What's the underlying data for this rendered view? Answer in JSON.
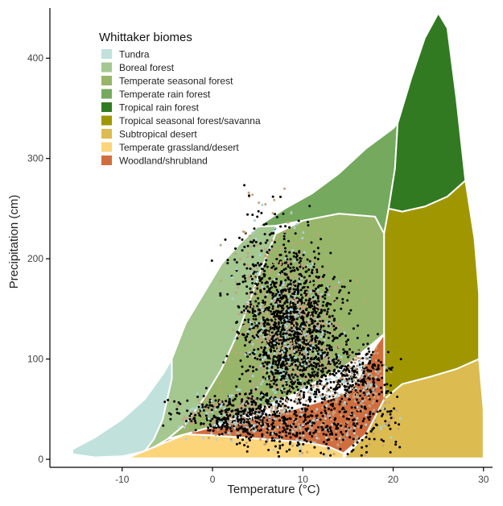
{
  "chart_data": {
    "type": "area",
    "title": "",
    "xlabel": "Temperature (°C)",
    "ylabel": "Precipitation (cm)",
    "xlim": [
      -18,
      31
    ],
    "ylim": [
      -8,
      450
    ],
    "x_ticks": [
      -10,
      0,
      10,
      20,
      30
    ],
    "y_ticks": [
      0,
      100,
      200,
      300,
      400
    ],
    "x_tick_labels": [
      "-10",
      "0",
      "10",
      "20",
      "30"
    ],
    "y_tick_labels": [
      "0",
      "100",
      "200",
      "300",
      "400"
    ],
    "grid": false,
    "legend": {
      "title": "Whittaker biomes",
      "position": "top-left",
      "entries": [
        {
          "name": "Tundra",
          "color": "#C1E1DD"
        },
        {
          "name": "Boreal forest",
          "color": "#A5C790"
        },
        {
          "name": "Temperate seasonal forest",
          "color": "#97B669"
        },
        {
          "name": "Temperate rain forest",
          "color": "#75A95E"
        },
        {
          "name": "Tropical rain forest",
          "color": "#317A22"
        },
        {
          "name": "Tropical seasonal forest/savanna",
          "color": "#A09700"
        },
        {
          "name": "Subtropical desert",
          "color": "#DCBB50"
        },
        {
          "name": "Temperate grassland/desert",
          "color": "#FCD57A"
        },
        {
          "name": "Woodland/shrubland",
          "color": "#D16E3F"
        }
      ]
    },
    "biomes": [
      {
        "name": "Tundra",
        "color": "#C1E1DD",
        "polygon": [
          [
            -15.5,
            10
          ],
          [
            -13,
            22
          ],
          [
            -10,
            40
          ],
          [
            -7.5,
            60
          ],
          [
            -5.5,
            85
          ],
          [
            -4.5,
            100
          ],
          [
            -4.5,
            80
          ],
          [
            -5.5,
            40
          ],
          [
            -6.5,
            20
          ],
          [
            -7.5,
            8
          ],
          [
            -10,
            3
          ],
          [
            -13,
            2
          ],
          [
            -15.5,
            5
          ]
        ]
      },
      {
        "name": "Boreal forest",
        "color": "#A5C790",
        "polygon": [
          [
            -7.5,
            8
          ],
          [
            -6.5,
            20
          ],
          [
            -5.5,
            40
          ],
          [
            -4.5,
            80
          ],
          [
            -4.5,
            100
          ],
          [
            -3,
            135
          ],
          [
            -1,
            165
          ],
          [
            1,
            195
          ],
          [
            3,
            215
          ],
          [
            5,
            232
          ],
          [
            7,
            233
          ],
          [
            7,
            225
          ],
          [
            5,
            180
          ],
          [
            3,
            130
          ],
          [
            1,
            90
          ],
          [
            -1,
            60
          ],
          [
            -3,
            35
          ],
          [
            -5,
            20
          ],
          [
            -6.5,
            12
          ]
        ]
      },
      {
        "name": "Temperate seasonal forest",
        "color": "#97B669",
        "polygon": [
          [
            -5,
            20
          ],
          [
            -3,
            35
          ],
          [
            -1,
            60
          ],
          [
            1,
            90
          ],
          [
            3,
            130
          ],
          [
            5,
            180
          ],
          [
            7,
            225
          ],
          [
            10,
            238
          ],
          [
            14,
            245
          ],
          [
            18,
            242
          ],
          [
            19,
            225
          ],
          [
            19,
            180
          ],
          [
            19,
            150
          ],
          [
            19,
            125
          ],
          [
            17,
            110
          ],
          [
            15,
            95
          ],
          [
            12,
            80
          ],
          [
            9,
            65
          ],
          [
            5,
            50
          ],
          [
            2,
            40
          ],
          [
            -1,
            30
          ],
          [
            -3,
            25
          ]
        ]
      },
      {
        "name": "Temperate rain forest",
        "color": "#75A95E",
        "polygon": [
          [
            5,
            232
          ],
          [
            8,
            250
          ],
          [
            11,
            265
          ],
          [
            14,
            285
          ],
          [
            17,
            310
          ],
          [
            20,
            330
          ],
          [
            20.5,
            335
          ],
          [
            20.2,
            290
          ],
          [
            19.5,
            250
          ],
          [
            19,
            225
          ],
          [
            18,
            242
          ],
          [
            14,
            245
          ],
          [
            10,
            238
          ],
          [
            7,
            233
          ]
        ]
      },
      {
        "name": "Tropical rain forest",
        "color": "#317A22",
        "polygon": [
          [
            20.5,
            335
          ],
          [
            22,
            380
          ],
          [
            23.5,
            420
          ],
          [
            25,
            445
          ],
          [
            26,
            430
          ],
          [
            27,
            360
          ],
          [
            28,
            278
          ],
          [
            26,
            262
          ],
          [
            23.5,
            252
          ],
          [
            21,
            247
          ],
          [
            19.5,
            250
          ],
          [
            20.2,
            290
          ]
        ]
      },
      {
        "name": "Tropical seasonal forest/savanna",
        "color": "#A09700",
        "polygon": [
          [
            19.5,
            250
          ],
          [
            21,
            247
          ],
          [
            23.5,
            252
          ],
          [
            26,
            262
          ],
          [
            28,
            278
          ],
          [
            29,
            220
          ],
          [
            29.5,
            165
          ],
          [
            29.5,
            100
          ],
          [
            27,
            90
          ],
          [
            24,
            82
          ],
          [
            21,
            75
          ],
          [
            19,
            60
          ],
          [
            19,
            125
          ],
          [
            19,
            150
          ],
          [
            19,
            180
          ],
          [
            19,
            225
          ]
        ]
      },
      {
        "name": "Subtropical desert",
        "color": "#DCBB50",
        "polygon": [
          [
            14.5,
            1
          ],
          [
            17,
            25
          ],
          [
            19,
            60
          ],
          [
            21,
            75
          ],
          [
            24,
            82
          ],
          [
            27,
            90
          ],
          [
            29.5,
            100
          ],
          [
            30,
            50
          ],
          [
            30,
            1
          ]
        ]
      },
      {
        "name": "Temperate grassland/desert",
        "color": "#FCD57A",
        "polygon": [
          [
            -9.5,
            1
          ],
          [
            -6.5,
            12
          ],
          [
            -5,
            20
          ],
          [
            -3,
            25
          ],
          [
            0,
            24
          ],
          [
            3,
            22
          ],
          [
            6,
            20
          ],
          [
            9,
            18
          ],
          [
            11,
            16
          ],
          [
            13,
            12
          ],
          [
            14.5,
            6
          ],
          [
            14.5,
            1
          ]
        ]
      },
      {
        "name": "Woodland/shrubland",
        "color": "#D16E3F",
        "polygon": [
          [
            -6.5,
            12
          ],
          [
            -5,
            20
          ],
          [
            -3,
            25
          ],
          [
            -1,
            30
          ],
          [
            2,
            36
          ],
          [
            5,
            42
          ],
          [
            9,
            50
          ],
          [
            12,
            58
          ],
          [
            15,
            66
          ],
          [
            16,
            78
          ],
          [
            17,
            95
          ],
          [
            18,
            112
          ],
          [
            19,
            125
          ],
          [
            19,
            60
          ],
          [
            17,
            25
          ],
          [
            14.5,
            6
          ],
          [
            13,
            12
          ],
          [
            11,
            16
          ],
          [
            9,
            18
          ],
          [
            6,
            20
          ],
          [
            3,
            22
          ],
          [
            0,
            24
          ],
          [
            -3,
            25
          ]
        ]
      }
    ],
    "observations": {
      "colors": [
        "#000000",
        "#C4A27F",
        "#A9D4E0"
      ],
      "clusters": [
        {
          "cx": 9,
          "cy": 125,
          "sx": 2.6,
          "sy": 38,
          "n": 2200
        },
        {
          "cx": 3,
          "cy": 45,
          "sx": 3.2,
          "sy": 12,
          "n": 700
        },
        {
          "cx": 16,
          "cy": 80,
          "sx": 2,
          "sy": 18,
          "n": 500
        },
        {
          "cx": 6,
          "cy": 190,
          "sx": 2.3,
          "sy": 40,
          "n": 280
        },
        {
          "cx": 12,
          "cy": 30,
          "sx": 5,
          "sy": 12,
          "n": 400
        }
      ]
    }
  }
}
